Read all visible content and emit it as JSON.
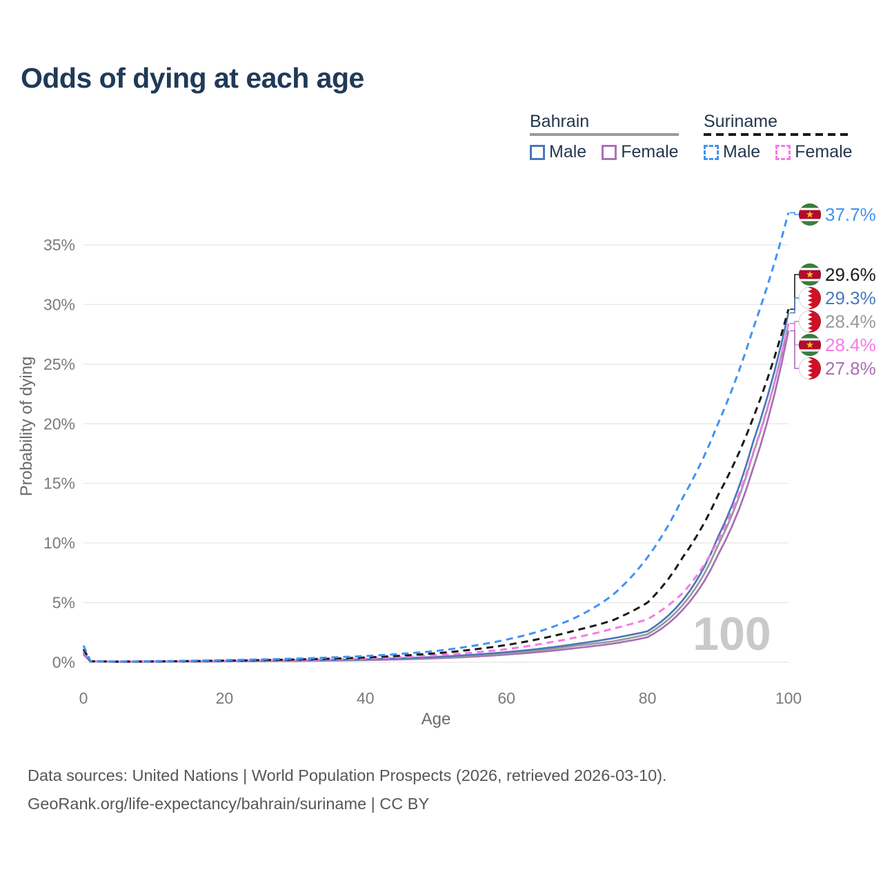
{
  "title": "Odds of dying at each age",
  "legend": {
    "groups": [
      {
        "label": "Bahrain",
        "line_style": "solid",
        "line_color": "#9a9a9a",
        "items": [
          {
            "label": "Male",
            "color": "#4a78b8",
            "style": "solid"
          },
          {
            "label": "Female",
            "color": "#a972b5",
            "style": "solid"
          }
        ]
      },
      {
        "label": "Suriname",
        "line_style": "dashed",
        "line_color": "#1a1a1a",
        "items": [
          {
            "label": "Male",
            "color": "#4193f1",
            "style": "dashed"
          },
          {
            "label": "Female",
            "color": "#f57ae8",
            "style": "dashed"
          }
        ]
      }
    ]
  },
  "chart_data": {
    "type": "line",
    "title": "Odds of dying at each age",
    "xlabel": "Age",
    "ylabel": "Probability of dying",
    "x_ticks": [
      0,
      20,
      40,
      60,
      80,
      100
    ],
    "x_tick_labels": [
      "0",
      "20",
      "40",
      "60",
      "80",
      "100"
    ],
    "y_ticks_percent": [
      0,
      5,
      10,
      15,
      20,
      25,
      30,
      35
    ],
    "y_tick_labels": [
      "0%",
      "5%",
      "10%",
      "15%",
      "20%",
      "25%",
      "30%",
      "35%"
    ],
    "xlim": [
      0,
      100
    ],
    "ylim_percent": [
      0,
      38
    ],
    "grid": "horizontal",
    "watermark": "100",
    "ages": [
      0,
      1,
      5,
      10,
      15,
      20,
      25,
      30,
      35,
      40,
      45,
      50,
      55,
      60,
      65,
      70,
      75,
      80,
      85,
      90,
      95,
      100
    ],
    "series": [
      {
        "key": "bahrain-female",
        "name": "Bahrain Female",
        "country": "Bahrain",
        "sex": "Female",
        "color": "#a76fb5",
        "line_style": "solid",
        "end_value_label": "27.8%",
        "values": [
          0.65,
          0.05,
          0.03,
          0.04,
          0.05,
          0.07,
          0.09,
          0.11,
          0.14,
          0.18,
          0.24,
          0.33,
          0.46,
          0.64,
          0.88,
          1.2,
          1.55,
          2.1,
          4.4,
          9.0,
          16.3,
          27.8
        ]
      },
      {
        "key": "bahrain-both",
        "name": "Bahrain Both sexes",
        "country": "Bahrain",
        "sex": "Both",
        "color": "#9a9a9a",
        "line_style": "solid",
        "end_value_label": "28.4%",
        "values": [
          0.75,
          0.05,
          0.04,
          0.04,
          0.06,
          0.09,
          0.11,
          0.13,
          0.17,
          0.22,
          0.29,
          0.4,
          0.55,
          0.75,
          1.02,
          1.4,
          1.75,
          2.35,
          4.8,
          9.8,
          17.5,
          28.4
        ]
      },
      {
        "key": "bahrain-male",
        "name": "Bahrain Male",
        "country": "Bahrain",
        "sex": "Male",
        "color": "#4a78b8",
        "line_style": "solid",
        "end_value_label": "29.3%",
        "values": [
          0.8,
          0.06,
          0.04,
          0.05,
          0.07,
          0.1,
          0.12,
          0.15,
          0.19,
          0.25,
          0.33,
          0.45,
          0.62,
          0.85,
          1.15,
          1.55,
          2.0,
          2.6,
          5.2,
          10.5,
          18.5,
          29.3
        ]
      },
      {
        "key": "suriname-female",
        "name": "Suriname Female",
        "country": "Suriname",
        "sex": "Female",
        "color": "#f57ae8",
        "line_style": "dashed",
        "end_value_label": "28.4%",
        "values": [
          0.9,
          0.07,
          0.05,
          0.06,
          0.08,
          0.11,
          0.14,
          0.18,
          0.23,
          0.31,
          0.42,
          0.58,
          0.8,
          1.1,
          1.55,
          2.1,
          2.8,
          3.6,
          5.8,
          10.2,
          17.6,
          28.4
        ]
      },
      {
        "key": "suriname-both",
        "name": "Suriname Both sexes",
        "country": "Suriname",
        "sex": "Both",
        "color": "#1a1a1a",
        "line_style": "dashed",
        "end_value_label": "29.6%",
        "values": [
          1.1,
          0.08,
          0.06,
          0.07,
          0.1,
          0.14,
          0.18,
          0.23,
          0.3,
          0.4,
          0.55,
          0.75,
          1.05,
          1.45,
          2.0,
          2.7,
          3.5,
          5.0,
          8.8,
          14.0,
          20.5,
          29.6
        ]
      },
      {
        "key": "suriname-male",
        "name": "Suriname Male",
        "country": "Suriname",
        "sex": "Male",
        "color": "#4193f1",
        "line_style": "dashed",
        "end_value_label": "37.7%",
        "values": [
          1.4,
          0.1,
          0.07,
          0.09,
          0.13,
          0.18,
          0.24,
          0.3,
          0.4,
          0.52,
          0.7,
          0.95,
          1.35,
          1.9,
          2.65,
          3.8,
          5.6,
          8.8,
          13.8,
          20.0,
          28.0,
          37.7
        ]
      }
    ]
  },
  "annotations": {
    "end_labels": [
      {
        "series": "suriname-male",
        "value": "37.7%",
        "flag": "suriname",
        "color": "#4193f1"
      },
      {
        "series": "suriname-both",
        "value": "29.6%",
        "flag": "suriname",
        "color": "#1a1a1a"
      },
      {
        "series": "bahrain-male",
        "value": "29.3%",
        "flag": "bahrain",
        "color": "#4a7ac0"
      },
      {
        "series": "bahrain-both",
        "value": "28.4%",
        "flag": "bahrain",
        "color": "#9a9a9a"
      },
      {
        "series": "suriname-female",
        "value": "28.4%",
        "flag": "suriname",
        "color": "#f57ae8"
      },
      {
        "series": "bahrain-female",
        "value": "27.8%",
        "flag": "bahrain",
        "color": "#a76fb5"
      }
    ]
  },
  "flag_colors": {
    "suriname": {
      "green": "#377e3f",
      "white": "#ffffff",
      "red": "#b40a2d",
      "star": "#ecc81d"
    },
    "bahrain": {
      "white": "#ffffff",
      "red": "#ce1126"
    }
  },
  "style_colors": {
    "title": "#203a57",
    "tick": "#7a7a7a",
    "axis_label": "#6b6b6b",
    "gridline": "#e8e8e8",
    "watermark": "#c9c9c9",
    "footer": "#565656"
  },
  "footer": {
    "line1": "Data sources: United Nations | World Population Prospects (2026, retrieved 2026-03-10).",
    "line2": "GeoRank.org/life-expectancy/bahrain/suriname | CC BY"
  }
}
